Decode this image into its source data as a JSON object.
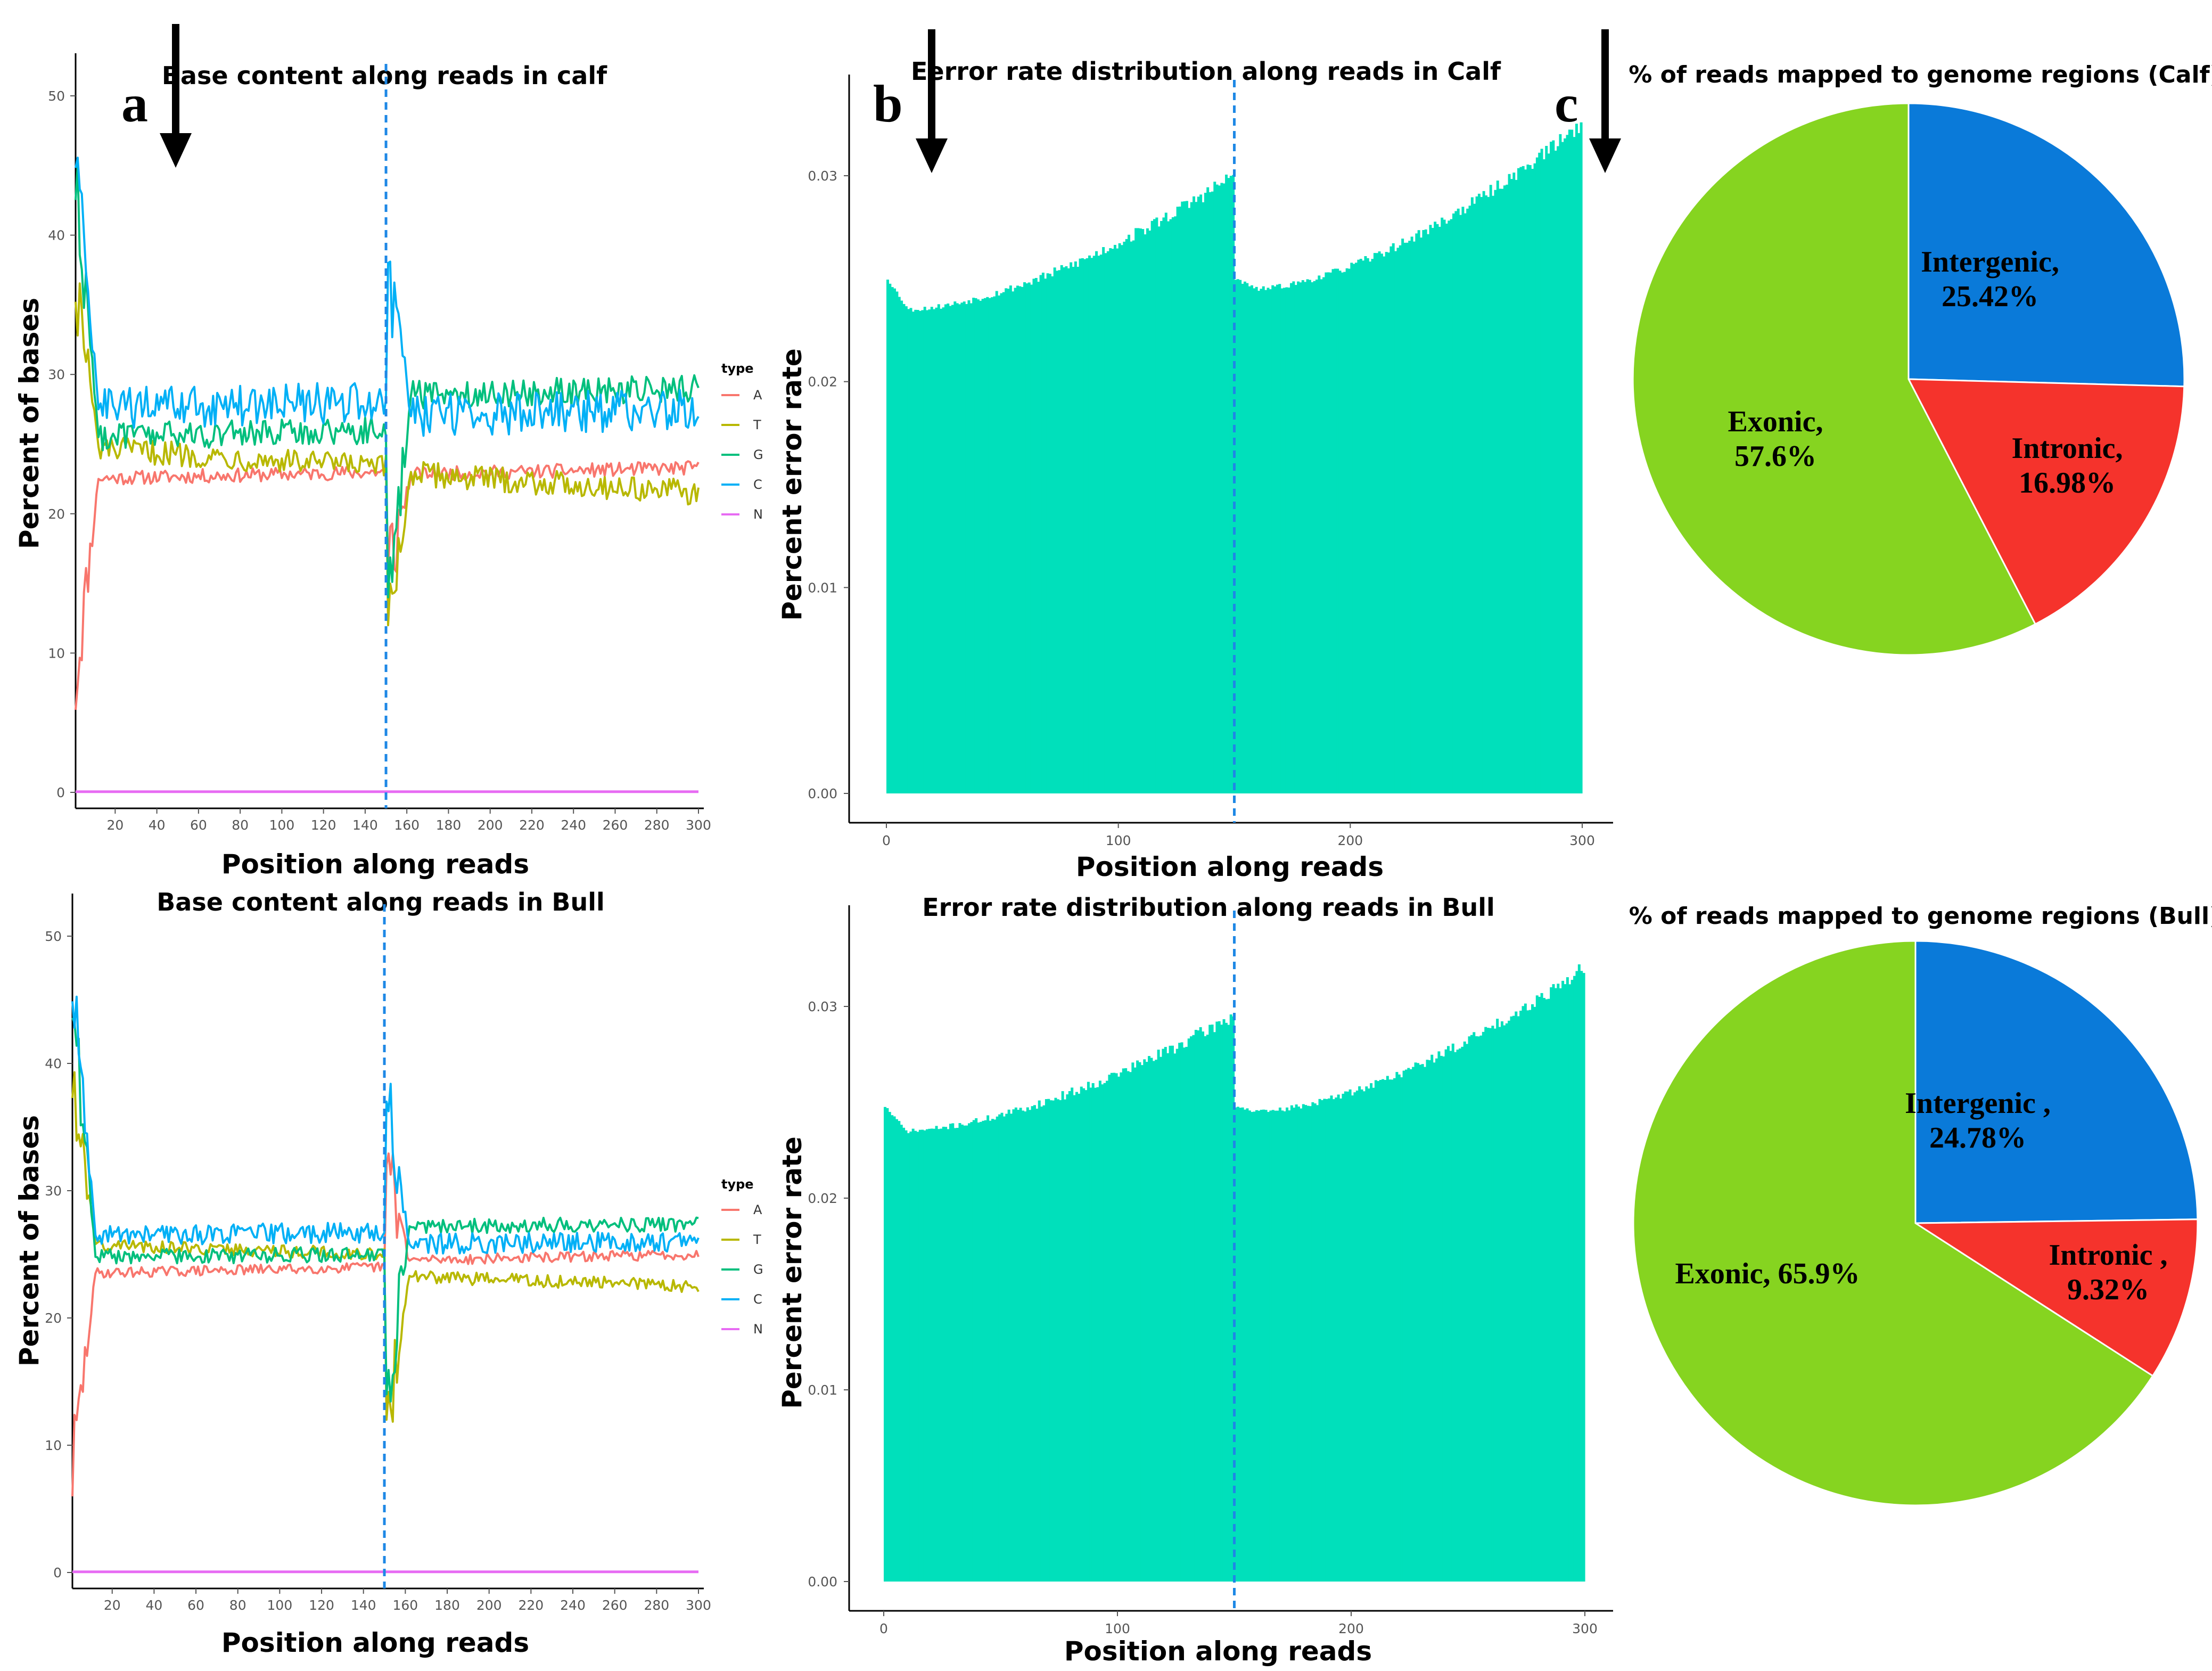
{
  "chart_data": [
    {
      "id": "a_calf",
      "type": "line",
      "title": "Base content along reads in calf",
      "xlabel": "Position along reads",
      "ylabel": "Percent of bases",
      "xlim": [
        1,
        300
      ],
      "ylim": [
        0,
        50
      ],
      "xticks": [
        20,
        40,
        60,
        80,
        100,
        120,
        140,
        160,
        180,
        200,
        220,
        240,
        260,
        280,
        300
      ],
      "yticks": [
        0,
        10,
        20,
        30,
        40,
        50
      ],
      "vline_x": 150,
      "legend_title": "type",
      "legend_position": "right",
      "series": [
        {
          "name": "A",
          "color": "#F8766D",
          "start": 8,
          "mean_r1": 22.5,
          "mean_r2": 22.8,
          "trend": 0.5,
          "noise": 0.5,
          "spike": 16
        },
        {
          "name": "T",
          "color": "#B8B800",
          "start": 37,
          "mean_r1": 24.8,
          "mean_r2": 23.0,
          "trend": -1.5,
          "noise": 0.9,
          "spike": 12
        },
        {
          "name": "G",
          "color": "#00BF7D",
          "start": 44,
          "mean_r1": 25.5,
          "mean_r2": 28.5,
          "trend": 0.5,
          "noise": 1.0,
          "spike": 14
        },
        {
          "name": "C",
          "color": "#00B0F6",
          "start": 46,
          "mean_r1": 27.5,
          "mean_r2": 27.0,
          "trend": 0.5,
          "noise": 1.5,
          "spike": 38
        },
        {
          "name": "N",
          "color": "#E76BF3",
          "start": 0,
          "mean_r1": 0,
          "mean_r2": 0,
          "trend": 0,
          "noise": 0,
          "spike": 0
        }
      ]
    },
    {
      "id": "a_bull",
      "type": "line",
      "title": "Base content along reads in Bull",
      "xlabel": "Position along reads",
      "ylabel": "Percent of bases",
      "xlim": [
        1,
        300
      ],
      "ylim": [
        0,
        50
      ],
      "xticks": [
        20,
        40,
        60,
        80,
        100,
        120,
        140,
        160,
        180,
        200,
        220,
        240,
        260,
        280,
        300
      ],
      "yticks": [
        0,
        10,
        20,
        30,
        40,
        50
      ],
      "vline_x": 150,
      "legend_title": "type",
      "legend_position": "right",
      "series": [
        {
          "name": "A",
          "color": "#F8766D",
          "start": 8,
          "mean_r1": 23.5,
          "mean_r2": 24.5,
          "trend": 0.5,
          "noise": 0.4,
          "spike": 32
        },
        {
          "name": "T",
          "color": "#B8B800",
          "start": 39,
          "mean_r1": 25.8,
          "mean_r2": 23.3,
          "trend": -0.8,
          "noise": 0.5,
          "spike": 12
        },
        {
          "name": "G",
          "color": "#00BF7D",
          "start": 45,
          "mean_r1": 24.8,
          "mean_r2": 27.2,
          "trend": 0.2,
          "noise": 0.6,
          "spike": 14
        },
        {
          "name": "C",
          "color": "#00B0F6",
          "start": 46,
          "mean_r1": 26.5,
          "mean_r2": 25.8,
          "trend": 0.2,
          "noise": 0.8,
          "spike": 37
        },
        {
          "name": "N",
          "color": "#E76BF3",
          "start": 0,
          "mean_r1": 0,
          "mean_r2": 0,
          "trend": 0,
          "noise": 0,
          "spike": 0
        }
      ]
    },
    {
      "id": "b_calf",
      "type": "bar",
      "title": "Eerror rate distribution along reads in Calf",
      "xlabel": "Position along reads",
      "ylabel": "Percent error rate",
      "xlim": [
        0,
        300
      ],
      "ylim": [
        0,
        0.033
      ],
      "xticks": [
        0,
        100,
        200,
        300
      ],
      "yticks": [
        0.0,
        0.01,
        0.02,
        0.03
      ],
      "vline_x": 150,
      "color": "#00E0BB",
      "read1_profile": {
        "first": 0.025,
        "min_pos": 10,
        "min": 0.0235,
        "end": 0.03
      },
      "read2_profile": {
        "first": 0.025,
        "min_pos": 10,
        "min": 0.0245,
        "end": 0.0325
      }
    },
    {
      "id": "b_bull",
      "type": "bar",
      "title": "Error rate distribution along reads in Bull",
      "xlabel": "Position along reads",
      "ylabel": "Percent error rate",
      "xlim": [
        0,
        300
      ],
      "ylim": [
        0,
        0.033
      ],
      "xticks": [
        0,
        100,
        200,
        300
      ],
      "yticks": [
        0.0,
        0.01,
        0.02,
        0.03
      ],
      "vline_x": 150,
      "color": "#00E0BB",
      "read1_profile": {
        "first": 0.0248,
        "min_pos": 10,
        "min": 0.0235,
        "end": 0.0295
      },
      "read2_profile": {
        "first": 0.0248,
        "min_pos": 10,
        "min": 0.0245,
        "end": 0.032
      }
    },
    {
      "id": "c_calf",
      "type": "pie",
      "title": "% of reads mapped  to genome regions (Calf)",
      "slices": [
        {
          "name": "Intergenic",
          "label_line1": "Intergenic,",
          "label_line2": "25.42%",
          "value": 25.42,
          "color": "#0A7AD9"
        },
        {
          "name": "Intronic",
          "label_line1": "Intronic,",
          "label_line2": "16.98%",
          "value": 16.98,
          "color": "#F5332C"
        },
        {
          "name": "Exonic",
          "label_line1": "Exonic,",
          "label_line2": "57.6%",
          "value": 57.6,
          "color": "#86D420"
        }
      ]
    },
    {
      "id": "c_bull",
      "type": "pie",
      "title": "% of reads mapped to genome regions (Bull)",
      "slices": [
        {
          "name": "Intergenic",
          "label_line1": "Intergenic ,",
          "label_line2": "24.78%",
          "value": 24.78,
          "color": "#0A7AD9"
        },
        {
          "name": "Intronic",
          "label_line1": "Intronic ,",
          "label_line2": "9.32%",
          "value": 9.32,
          "color": "#F5332C"
        },
        {
          "name": "Exonic",
          "label_line1": "Exonic, 65.9%",
          "label_line2": "",
          "value": 65.9,
          "color": "#86D420"
        }
      ]
    }
  ],
  "panel_labels": {
    "a": "a",
    "b": "b",
    "c": "c"
  }
}
